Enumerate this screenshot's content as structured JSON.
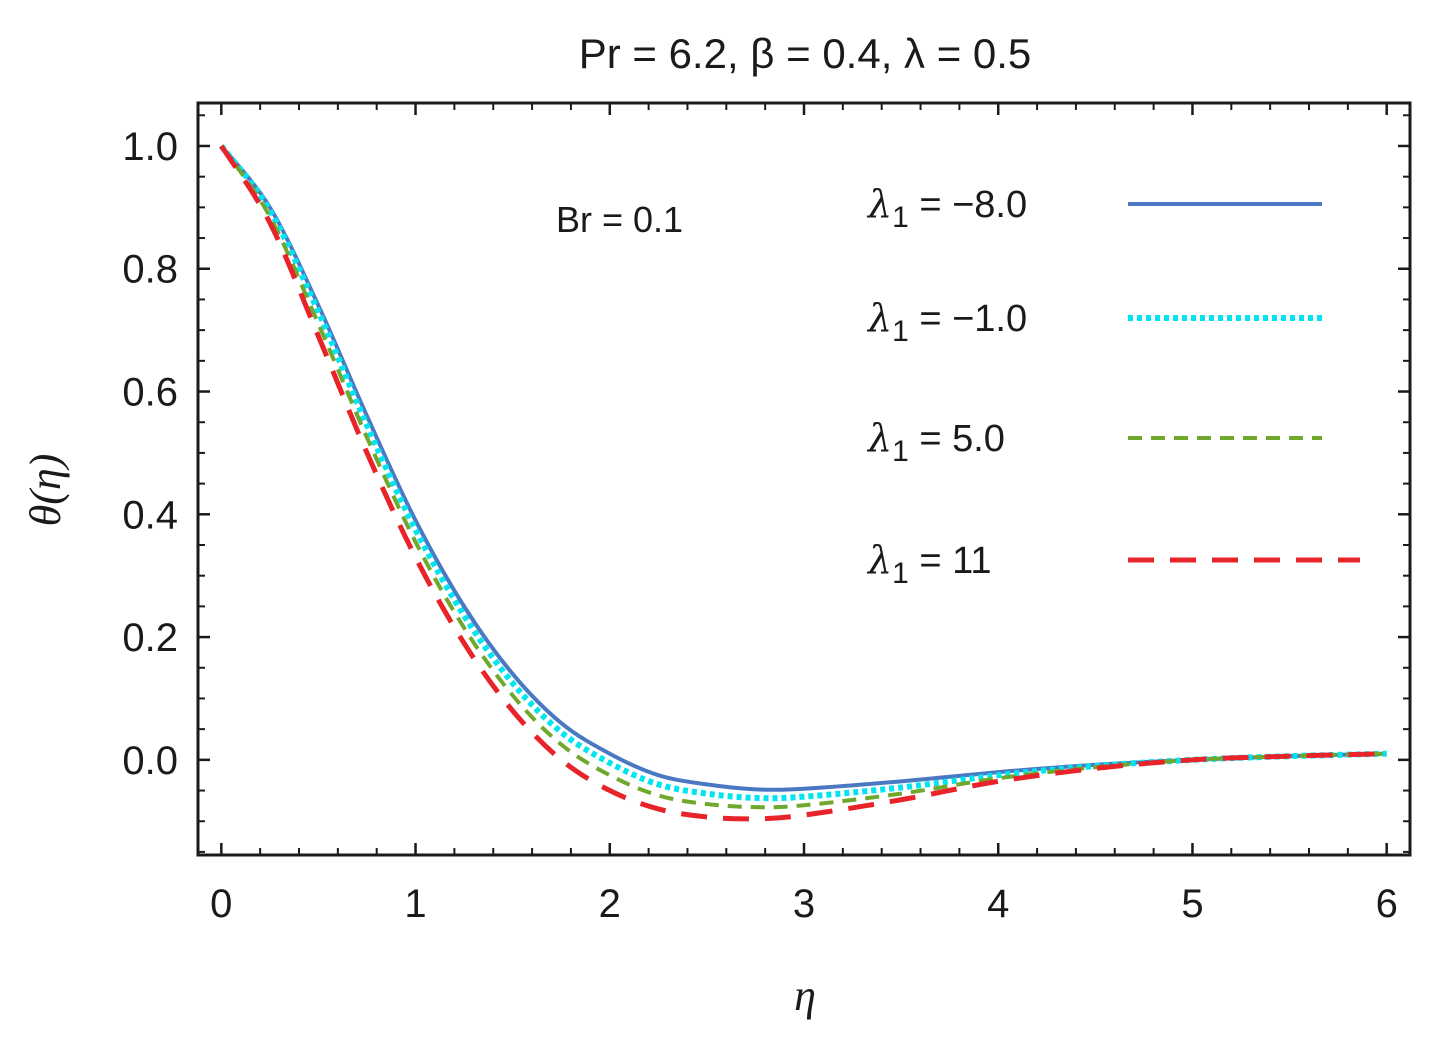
{
  "chart_data": {
    "type": "line",
    "title": "Pr = 6.2, β = 0.4, λ = 0.5",
    "xlabel": "η",
    "ylabel": "θ(η)",
    "xlim": [
      -0.12,
      6.12
    ],
    "ylim": [
      -0.155,
      1.07
    ],
    "xticks": [
      0,
      1,
      2,
      3,
      4,
      5,
      6
    ],
    "xtick_labels": [
      "0",
      "1",
      "2",
      "3",
      "4",
      "5",
      "6"
    ],
    "yticks": [
      0.0,
      0.2,
      0.4,
      0.6,
      0.8,
      1.0
    ],
    "ytick_labels": [
      "0.0",
      "0.2",
      "0.4",
      "0.6",
      "0.8",
      "1.0"
    ],
    "annotation": "Br = 0.1",
    "legend_position": "top-right",
    "series": [
      {
        "name": "λ1 = −8.0",
        "legend_label": "λ1 = −8.0",
        "color": "#4a78c2",
        "dash": "solid",
        "x": [
          0,
          0.25,
          0.5,
          0.75,
          1.0,
          1.25,
          1.5,
          1.75,
          2.0,
          2.25,
          2.5,
          2.75,
          3.0,
          3.5,
          4.0,
          4.5,
          5.0,
          5.5,
          6.0
        ],
        "y": [
          1.0,
          0.9,
          0.74,
          0.56,
          0.39,
          0.25,
          0.14,
          0.06,
          0.01,
          -0.025,
          -0.04,
          -0.048,
          -0.047,
          -0.035,
          -0.02,
          -0.008,
          0.0,
          0.006,
          0.01
        ]
      },
      {
        "name": "λ1 = −1.0",
        "legend_label": "λ1 = −1.0",
        "color": "#00e5f0",
        "dash": "dotted",
        "x": [
          0,
          0.25,
          0.5,
          0.75,
          1.0,
          1.25,
          1.5,
          1.75,
          2.0,
          2.25,
          2.5,
          2.75,
          3.0,
          3.5,
          4.0,
          4.5,
          5.0,
          5.5,
          6.0
        ],
        "y": [
          1.0,
          0.895,
          0.73,
          0.545,
          0.375,
          0.235,
          0.125,
          0.045,
          -0.005,
          -0.04,
          -0.055,
          -0.062,
          -0.06,
          -0.045,
          -0.025,
          -0.01,
          0.0,
          0.006,
          0.01
        ]
      },
      {
        "name": "λ1 = 5.0",
        "legend_label": "λ1 = 5.0",
        "color": "#6fa82c",
        "dash": "dashed",
        "x": [
          0,
          0.25,
          0.5,
          0.75,
          1.0,
          1.25,
          1.5,
          1.75,
          2.0,
          2.25,
          2.5,
          2.75,
          3.0,
          3.5,
          4.0,
          4.5,
          5.0,
          5.5,
          6.0
        ],
        "y": [
          1.0,
          0.885,
          0.71,
          0.525,
          0.355,
          0.215,
          0.105,
          0.025,
          -0.025,
          -0.058,
          -0.072,
          -0.077,
          -0.074,
          -0.055,
          -0.03,
          -0.012,
          0.0,
          0.006,
          0.01
        ]
      },
      {
        "name": "λ1 = 11",
        "legend_label": "λ1 = 11",
        "color": "#e8232a",
        "dash": "longdash",
        "x": [
          0,
          0.25,
          0.5,
          0.75,
          1.0,
          1.25,
          1.5,
          1.75,
          2.0,
          2.25,
          2.5,
          2.75,
          3.0,
          3.5,
          4.0,
          4.5,
          5.0,
          5.5,
          6.0
        ],
        "y": [
          1.0,
          0.875,
          0.69,
          0.5,
          0.33,
          0.19,
          0.08,
          0.0,
          -0.05,
          -0.08,
          -0.093,
          -0.096,
          -0.09,
          -0.065,
          -0.035,
          -0.014,
          0.0,
          0.006,
          0.01
        ]
      }
    ]
  }
}
